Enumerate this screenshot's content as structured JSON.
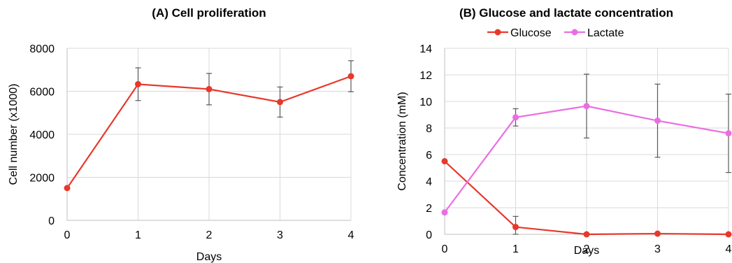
{
  "chart_data": [
    {
      "type": "line",
      "title": "(A) Cell proliferation",
      "xlabel": "Days",
      "ylabel": "Cell number (x1000)",
      "x": [
        0,
        1,
        2,
        3,
        4
      ],
      "x_ticks": [
        "0",
        "1",
        "2",
        "3",
        "4"
      ],
      "ylim": [
        0,
        8000
      ],
      "y_ticks": [
        "0",
        "2000",
        "4000",
        "6000",
        "8000"
      ],
      "grid": true,
      "series": [
        {
          "values": [
            1500,
            6330,
            6100,
            5500,
            6700
          ],
          "errors": [
            0,
            760,
            730,
            700,
            720
          ],
          "color": "#e8382b"
        }
      ]
    },
    {
      "type": "line",
      "title": "(B) Glucose and lactate concentration",
      "xlabel": "Days",
      "ylabel": "Concentration (mM)",
      "x": [
        0,
        1,
        2,
        3,
        4
      ],
      "x_ticks": [
        "0",
        "1",
        "2",
        "3",
        "4"
      ],
      "ylim": [
        0,
        14
      ],
      "y_ticks": [
        "0",
        "2",
        "4",
        "6",
        "8",
        "10",
        "12",
        "14"
      ],
      "grid": true,
      "legend_position": "top",
      "series": [
        {
          "name": "Glucose",
          "values": [
            5.5,
            0.55,
            0.0,
            0.05,
            0.0
          ],
          "errors": [
            0,
            0.8,
            0,
            0,
            0
          ],
          "color": "#e8382b"
        },
        {
          "name": "Lactate",
          "values": [
            1.65,
            8.8,
            9.65,
            8.55,
            7.6
          ],
          "errors": [
            0,
            0.65,
            2.4,
            2.75,
            2.95
          ],
          "color": "#ea6ee3"
        }
      ]
    }
  ]
}
